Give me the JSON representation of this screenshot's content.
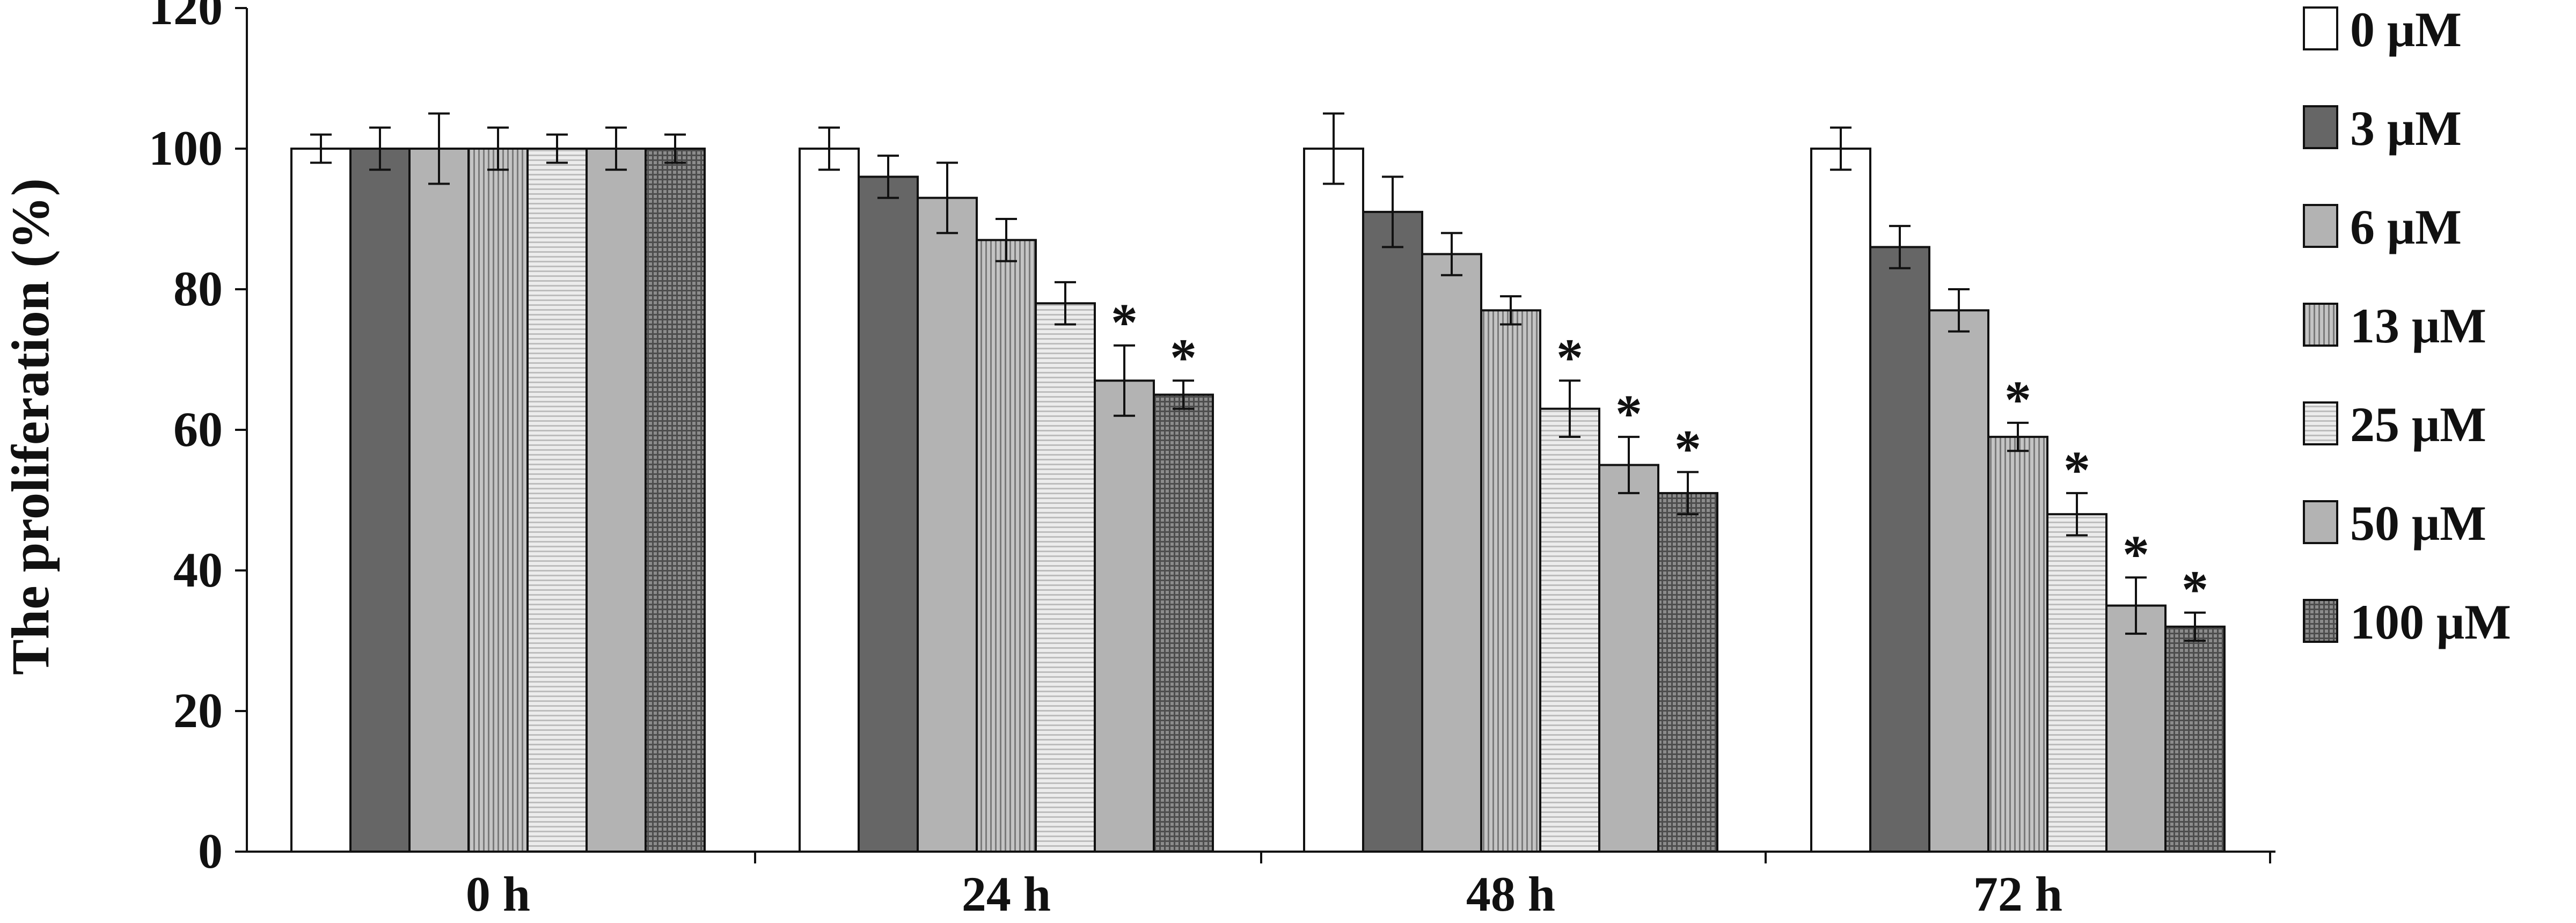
{
  "chart_data": {
    "type": "bar",
    "title": "",
    "xlabel": "",
    "ylabel": "The proliferation (%)",
    "ylim": [
      0,
      120
    ],
    "yticks": [
      0,
      20,
      40,
      60,
      80,
      100,
      120
    ],
    "grid": false,
    "legend_position": "right",
    "categories": [
      "0 h",
      "24 h",
      "48 h",
      "72 h"
    ],
    "significance_marker": "*",
    "series": [
      {
        "name": "0 μM",
        "fill": "white",
        "values": [
          100,
          100,
          100,
          100
        ],
        "errors": [
          2,
          3,
          5,
          3
        ],
        "significant": [
          false,
          false,
          false,
          false
        ]
      },
      {
        "name": "3 μM",
        "fill": "dark",
        "values": [
          100,
          96,
          91,
          86
        ],
        "errors": [
          3,
          3,
          5,
          3
        ],
        "significant": [
          false,
          false,
          false,
          false
        ]
      },
      {
        "name": "6 μM",
        "fill": "gray",
        "values": [
          100,
          93,
          85,
          77
        ],
        "errors": [
          5,
          5,
          3,
          3
        ],
        "significant": [
          false,
          false,
          false,
          false
        ]
      },
      {
        "name": "13 μM",
        "fill": "vstripe",
        "values": [
          100,
          87,
          77,
          59
        ],
        "errors": [
          3,
          3,
          2,
          2
        ],
        "significant": [
          false,
          false,
          false,
          true
        ]
      },
      {
        "name": "25 μM",
        "fill": "hstripe",
        "values": [
          100,
          78,
          63,
          48
        ],
        "errors": [
          2,
          3,
          4,
          3
        ],
        "significant": [
          false,
          false,
          true,
          true
        ]
      },
      {
        "name": "50 μM",
        "fill": "gray",
        "values": [
          100,
          67,
          55,
          35
        ],
        "errors": [
          3,
          5,
          4,
          4
        ],
        "significant": [
          false,
          true,
          true,
          true
        ]
      },
      {
        "name": "100 μM",
        "fill": "crosshatch",
        "values": [
          100,
          65,
          51,
          32
        ],
        "errors": [
          2,
          2,
          3,
          2
        ],
        "significant": [
          false,
          true,
          true,
          true
        ]
      }
    ]
  }
}
